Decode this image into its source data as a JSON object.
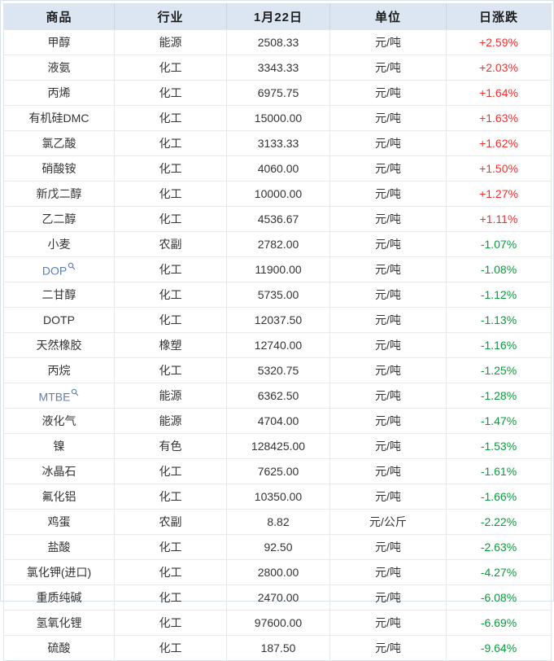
{
  "colors": {
    "header_bg": "#dce6f3",
    "positive_red": "#fe2b2b",
    "negative_green": "#0a9c3c",
    "link_blue": "#5b7db3",
    "cell_text": "#333333",
    "row_border": "#e9e9e9",
    "outer_border": "#d9e2f0"
  },
  "table": {
    "columns": [
      {
        "key": "commodity",
        "label": "商品"
      },
      {
        "key": "industry",
        "label": "行业"
      },
      {
        "key": "price",
        "label": "1月22日"
      },
      {
        "key": "unit",
        "label": "单位"
      },
      {
        "key": "change",
        "label": "日涨跌"
      }
    ],
    "rows": [
      {
        "commodity": "甲醇",
        "industry": "能源",
        "price": "2508.33",
        "unit": "元/吨",
        "change": "+2.59%",
        "direction": "up",
        "link": false
      },
      {
        "commodity": "液氨",
        "industry": "化工",
        "price": "3343.33",
        "unit": "元/吨",
        "change": "+2.03%",
        "direction": "up",
        "link": false
      },
      {
        "commodity": "丙烯",
        "industry": "化工",
        "price": "6975.75",
        "unit": "元/吨",
        "change": "+1.64%",
        "direction": "up",
        "link": false
      },
      {
        "commodity": "有机硅DMC",
        "industry": "化工",
        "price": "15000.00",
        "unit": "元/吨",
        "change": "+1.63%",
        "direction": "up",
        "link": false
      },
      {
        "commodity": "氯乙酸",
        "industry": "化工",
        "price": "3133.33",
        "unit": "元/吨",
        "change": "+1.62%",
        "direction": "up",
        "link": false
      },
      {
        "commodity": "硝酸铵",
        "industry": "化工",
        "price": "4060.00",
        "unit": "元/吨",
        "change": "+1.50%",
        "direction": "up",
        "link": false
      },
      {
        "commodity": "新戊二醇",
        "industry": "化工",
        "price": "10000.00",
        "unit": "元/吨",
        "change": "+1.27%",
        "direction": "up",
        "link": false
      },
      {
        "commodity": "乙二醇",
        "industry": "化工",
        "price": "4536.67",
        "unit": "元/吨",
        "change": "+1.11%",
        "direction": "up",
        "link": false
      },
      {
        "commodity": "小麦",
        "industry": "农副",
        "price": "2782.00",
        "unit": "元/吨",
        "change": "-1.07%",
        "direction": "down",
        "link": false
      },
      {
        "commodity": "DOP",
        "industry": "化工",
        "price": "11900.00",
        "unit": "元/吨",
        "change": "-1.08%",
        "direction": "down",
        "link": true
      },
      {
        "commodity": "二甘醇",
        "industry": "化工",
        "price": "5735.00",
        "unit": "元/吨",
        "change": "-1.12%",
        "direction": "down",
        "link": false
      },
      {
        "commodity": "DOTP",
        "industry": "化工",
        "price": "12037.50",
        "unit": "元/吨",
        "change": "-1.13%",
        "direction": "down",
        "link": false
      },
      {
        "commodity": "天然橡胶",
        "industry": "橡塑",
        "price": "12740.00",
        "unit": "元/吨",
        "change": "-1.16%",
        "direction": "down",
        "link": false
      },
      {
        "commodity": "丙烷",
        "industry": "化工",
        "price": "5320.75",
        "unit": "元/吨",
        "change": "-1.25%",
        "direction": "down",
        "link": false
      },
      {
        "commodity": "MTBE",
        "industry": "能源",
        "price": "6362.50",
        "unit": "元/吨",
        "change": "-1.28%",
        "direction": "down",
        "link": true
      },
      {
        "commodity": "液化气",
        "industry": "能源",
        "price": "4704.00",
        "unit": "元/吨",
        "change": "-1.47%",
        "direction": "down",
        "link": false
      },
      {
        "commodity": "镍",
        "industry": "有色",
        "price": "128425.00",
        "unit": "元/吨",
        "change": "-1.53%",
        "direction": "down",
        "link": false
      },
      {
        "commodity": "冰晶石",
        "industry": "化工",
        "price": "7625.00",
        "unit": "元/吨",
        "change": "-1.61%",
        "direction": "down",
        "link": false
      },
      {
        "commodity": "氟化铝",
        "industry": "化工",
        "price": "10350.00",
        "unit": "元/吨",
        "change": "-1.66%",
        "direction": "down",
        "link": false
      },
      {
        "commodity": "鸡蛋",
        "industry": "农副",
        "price": "8.82",
        "unit": "元/公斤",
        "change": "-2.22%",
        "direction": "down",
        "link": false
      },
      {
        "commodity": "盐酸",
        "industry": "化工",
        "price": "92.50",
        "unit": "元/吨",
        "change": "-2.63%",
        "direction": "down",
        "link": false
      },
      {
        "commodity": "氯化钾(进口)",
        "industry": "化工",
        "price": "2800.00",
        "unit": "元/吨",
        "change": "-4.27%",
        "direction": "down",
        "link": false
      },
      {
        "commodity": "重质纯碱",
        "industry": "化工",
        "price": "2470.00",
        "unit": "元/吨",
        "change": "-6.08%",
        "direction": "down",
        "link": false
      },
      {
        "commodity": "氢氧化锂",
        "industry": "化工",
        "price": "97600.00",
        "unit": "元/吨",
        "change": "-6.69%",
        "direction": "down",
        "link": false
      },
      {
        "commodity": "硫酸",
        "industry": "化工",
        "price": "187.50",
        "unit": "元/吨",
        "change": "-9.64%",
        "direction": "down",
        "link": false
      }
    ]
  }
}
